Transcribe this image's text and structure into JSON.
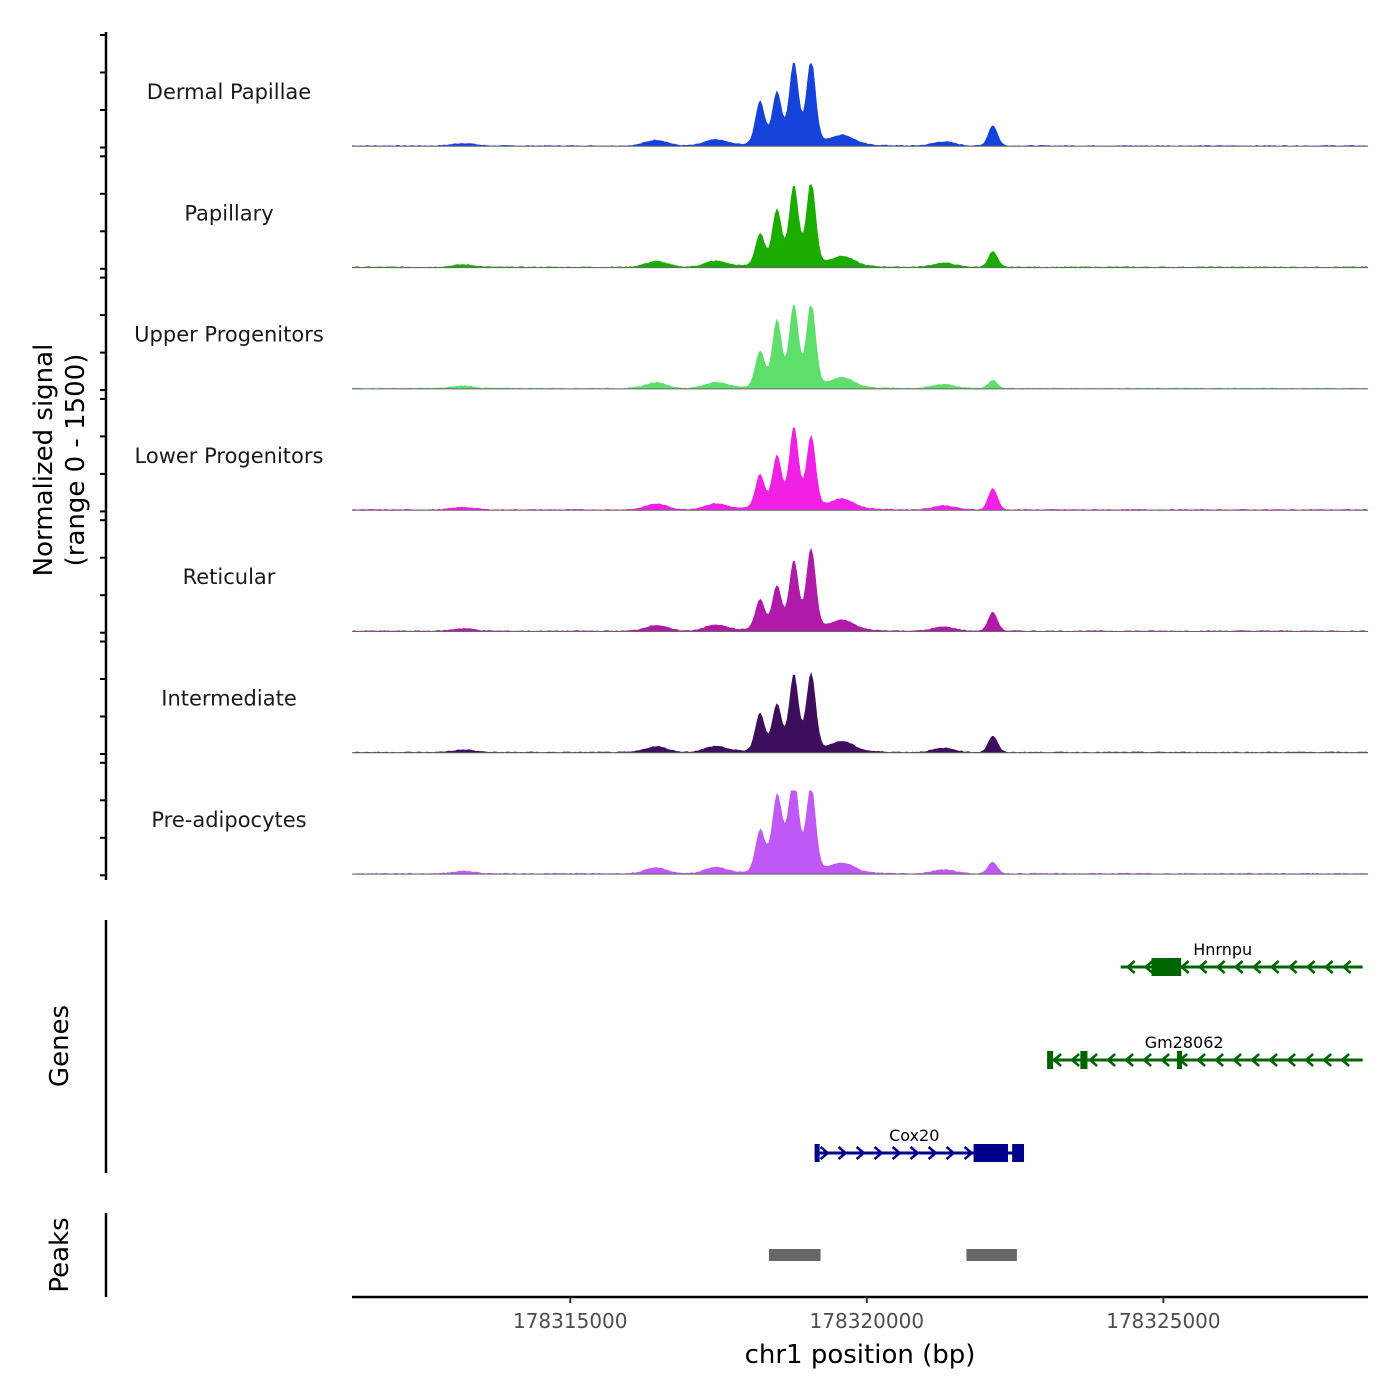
{
  "chart_data": {
    "type": "area",
    "title": "",
    "xlabel": "chr1 position (bp)",
    "ylabel": "Normalized signal\n(range 0 - 1500)",
    "ylabel_lines": [
      "Normalized signal",
      "(range 0 - 1500)"
    ],
    "ylim": [
      0,
      1500
    ],
    "xlim": [
      178311320,
      178328450
    ],
    "x_ticks": [
      178315000,
      178320000,
      178325000
    ],
    "x_tick_labels": [
      "178315000",
      "178320000",
      "178325000"
    ],
    "grid": false,
    "legend": "none",
    "signal_baseline_color": "#666666",
    "peak_profile": [
      {
        "pos": 178313200,
        "rel": 0.03
      },
      {
        "pos": 178316450,
        "rel": 0.07
      },
      {
        "pos": 178317450,
        "rel": 0.07
      },
      {
        "pos": 178318200,
        "rel_by_track": [
          0.52,
          0.38,
          0.43,
          0.4,
          0.36,
          0.45,
          0.47
        ]
      },
      {
        "pos": 178318485,
        "rel_by_track": [
          0.62,
          0.67,
          0.8,
          0.62,
          0.51,
          0.55,
          0.72
        ]
      },
      {
        "pos": 178318770,
        "rel_by_track": [
          0.97,
          0.95,
          0.98,
          0.96,
          0.81,
          0.9,
          0.96
        ]
      },
      {
        "pos": 178319060,
        "rel_by_track": [
          1.0,
          1.0,
          1.0,
          0.85,
          0.97,
          0.92,
          1.0
        ]
      },
      {
        "pos": 178319600,
        "rel": 0.1
      },
      {
        "pos": 178321300,
        "rel": 0.05
      },
      {
        "pos": 178322125,
        "rel_by_track": [
          0.25,
          0.19,
          0.1,
          0.26,
          0.23,
          0.2,
          0.14
        ]
      }
    ],
    "series": [
      {
        "name": "Dermal Papillae",
        "color": "#1542DB"
      },
      {
        "name": "Papillary",
        "color": "#1AAD00"
      },
      {
        "name": "Upper Progenitors",
        "color": "#5EDE6A"
      },
      {
        "name": "Lower Progenitors",
        "color": "#F020E4"
      },
      {
        "name": "Reticular",
        "color": "#B01AA8"
      },
      {
        "name": "Intermediate",
        "color": "#3D0E5C"
      },
      {
        "name": "Pre-adipocytes",
        "color": "#C058F5"
      }
    ],
    "genes_track_label": "Genes",
    "genes": [
      {
        "name": "Hnrnpu",
        "strand": "-",
        "start": 178324280,
        "end": 178328360,
        "color": "#006400",
        "exons": [
          [
            178324800,
            178325300
          ]
        ],
        "row": 0
      },
      {
        "name": "Gm28062",
        "strand": "-",
        "start": 178323040,
        "end": 178328360,
        "color": "#006400",
        "exons": [
          [
            178323040,
            178323140
          ],
          [
            178323600,
            178323720
          ],
          [
            178325230,
            178325300
          ]
        ],
        "row": 1
      },
      {
        "name": "Cox20",
        "strand": "+",
        "start": 178319120,
        "end": 178322650,
        "color": "#00008B",
        "exons": [
          [
            178319120,
            178319180
          ],
          [
            178321800,
            178322380
          ],
          [
            178322450,
            178322650
          ]
        ],
        "row": 2
      }
    ],
    "peaks_track_label": "Peaks",
    "peaks": [
      {
        "start": 178318350,
        "end": 178319220,
        "color": "#666666"
      },
      {
        "start": 178321680,
        "end": 178322530,
        "color": "#666666"
      }
    ]
  }
}
